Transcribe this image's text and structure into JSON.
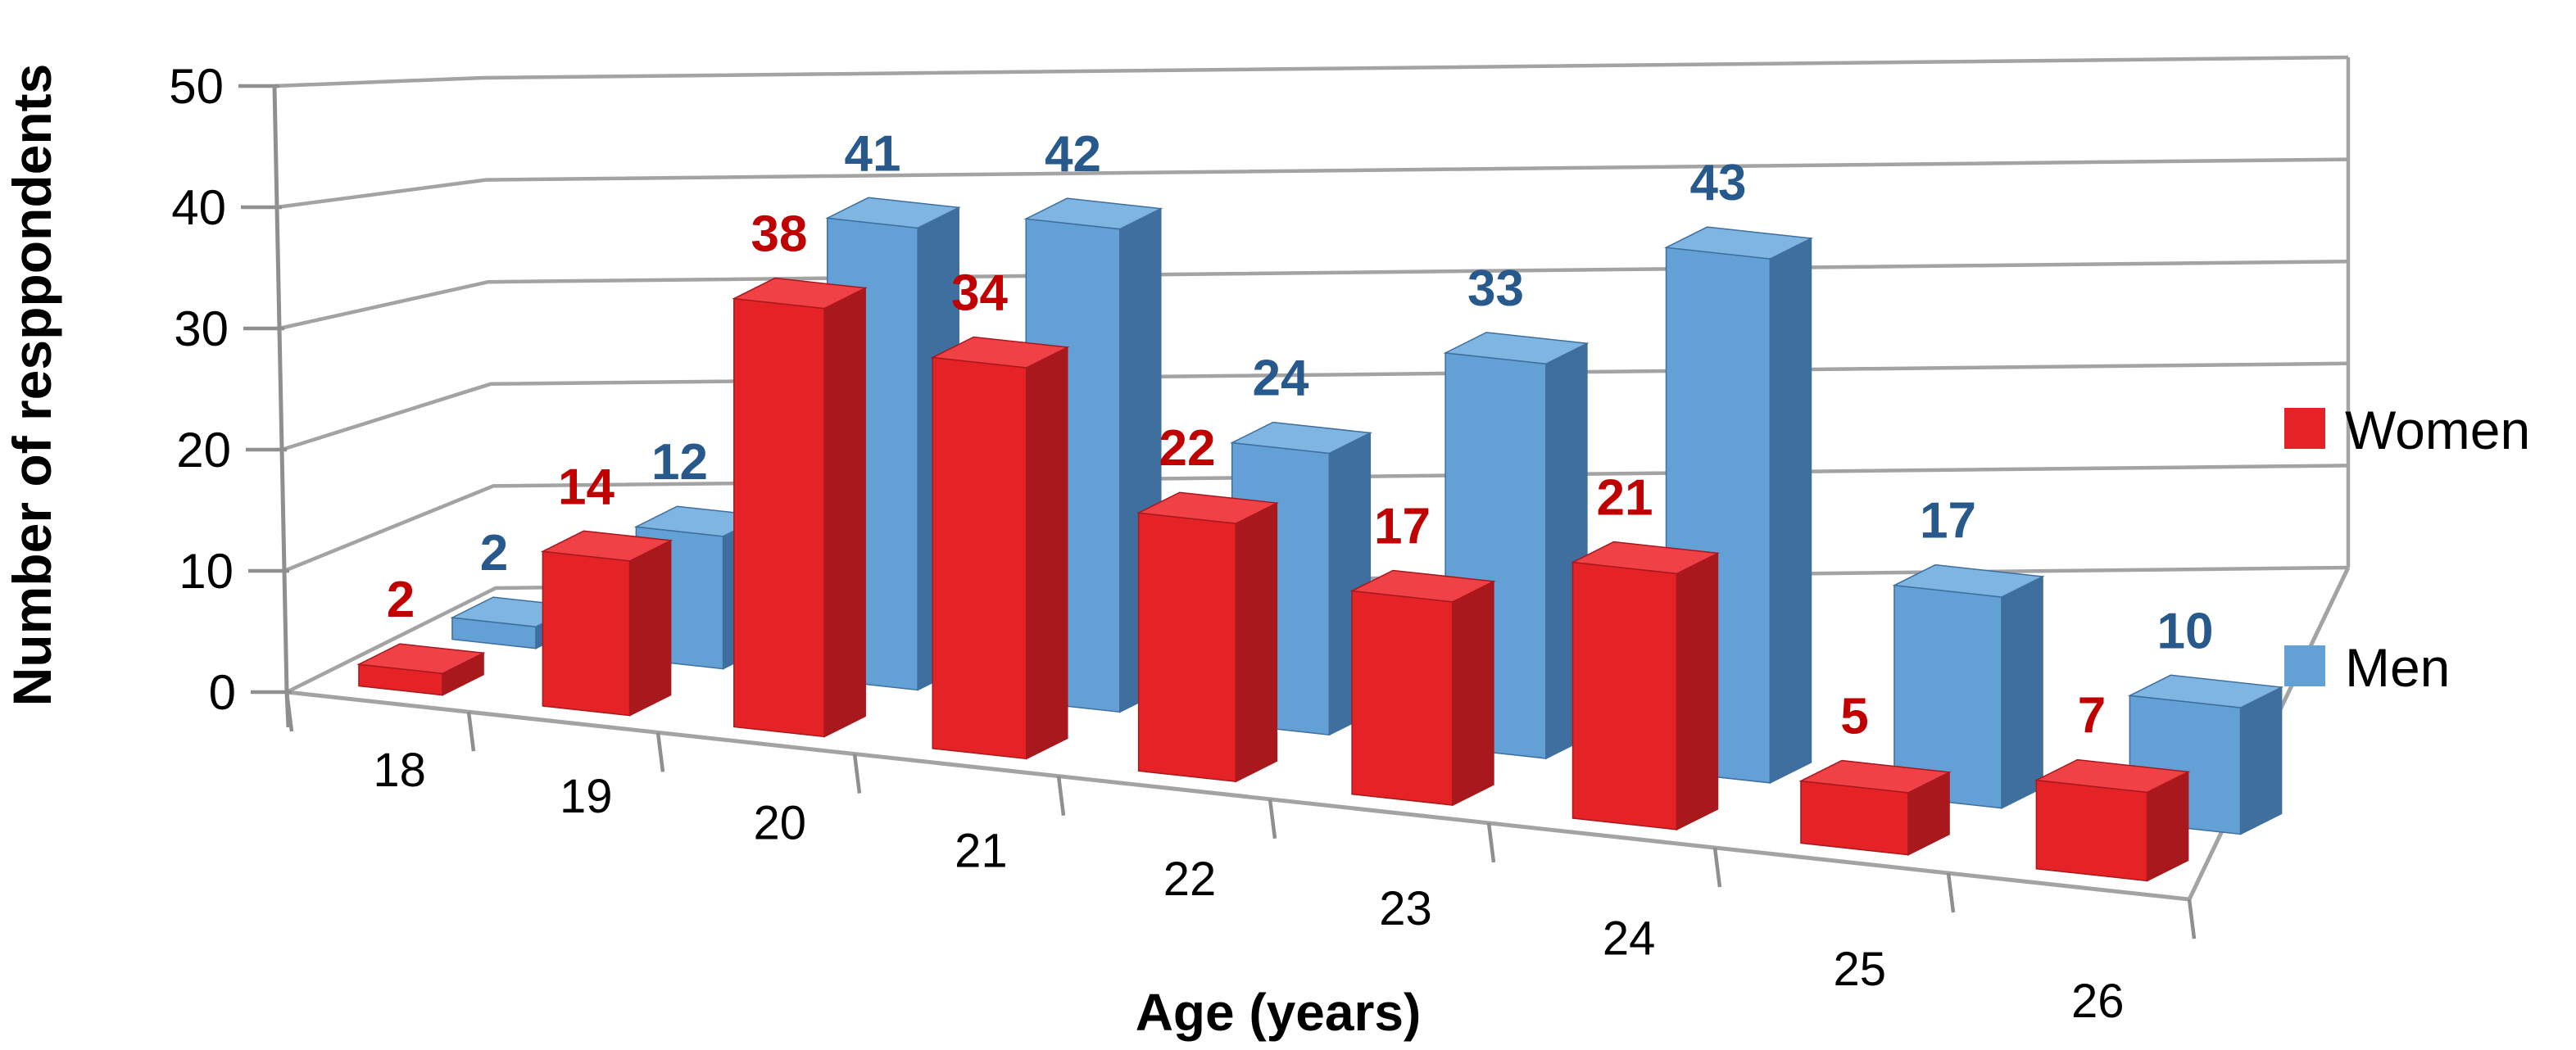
{
  "chart_data": {
    "type": "bar",
    "variant": "3d-clustered-column",
    "title": "",
    "xlabel": "Age (years)",
    "ylabel": "Number of resppondents",
    "categories": [
      "18",
      "19",
      "20",
      "21",
      "22",
      "23",
      "24",
      "25",
      "26"
    ],
    "series": [
      {
        "name": "Women",
        "values": [
          2,
          14,
          38,
          34,
          22,
          17,
          21,
          5,
          7
        ],
        "color": "#e52225",
        "color_top": "#ef4146",
        "color_side": "#a8181d",
        "label_color": "#c00000",
        "row": "front"
      },
      {
        "name": "Men",
        "values": [
          2,
          12,
          41,
          42,
          24,
          33,
          43,
          17,
          10
        ],
        "color": "#62a0d5",
        "color_top": "#7fb5e1",
        "color_side": "#3e6f9e",
        "label_color": "#27598c",
        "row": "back"
      }
    ],
    "ylim": [
      0,
      50
    ],
    "yticks": [
      "0",
      "10",
      "20",
      "30",
      "40",
      "50"
    ],
    "grid": true,
    "gridline_color": "#a3a3a3",
    "axis_color": "#8f8f8f",
    "legend_position": "right",
    "legend": [
      "Women",
      "Men"
    ],
    "data_labels_shown": true
  }
}
